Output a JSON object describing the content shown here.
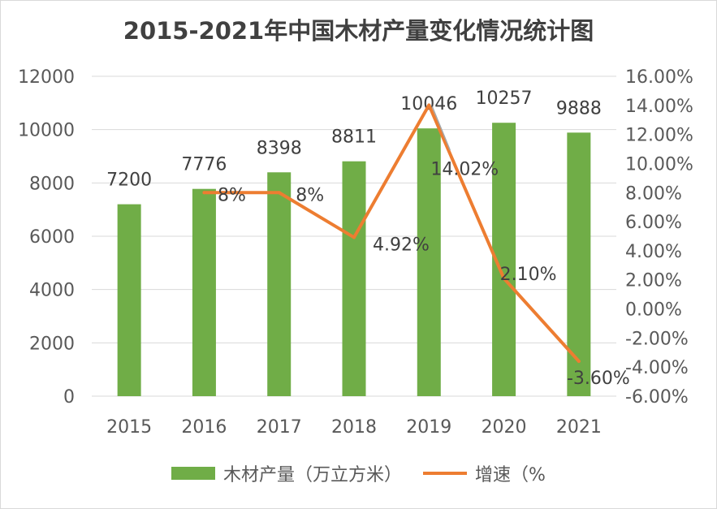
{
  "chart_data": {
    "type": "bar+line",
    "title": "2015-2021年中国木材产量变化情况统计图",
    "categories": [
      "2015",
      "2016",
      "2017",
      "2018",
      "2019",
      "2020",
      "2021"
    ],
    "series": [
      {
        "name": "木材产量（万立方米）",
        "type": "bar",
        "axis": "left",
        "color": "#70ad47",
        "values": [
          7200,
          7776,
          8398,
          8811,
          10046,
          10257,
          9888
        ],
        "labels": [
          "7200",
          "7776",
          "8398",
          "8811",
          "10046",
          "10257",
          "9888"
        ]
      },
      {
        "name": "增速（%",
        "type": "line",
        "axis": "right",
        "color": "#ed7d31",
        "values": [
          null,
          8.0,
          8.0,
          4.92,
          14.02,
          2.1,
          -3.6
        ],
        "labels": [
          "",
          "8%",
          "8%",
          "4.92%",
          "14.02%",
          "2.10%",
          "-3.60%"
        ]
      }
    ],
    "y_left": {
      "min": 0,
      "max": 12000,
      "ticks": [
        "0",
        "2000",
        "4000",
        "6000",
        "8000",
        "10000",
        "12000"
      ]
    },
    "y_right": {
      "min": -6,
      "max": 16,
      "ticks": [
        "-6.00%",
        "-4.00%",
        "-2.00%",
        "0.00%",
        "2.00%",
        "4.00%",
        "6.00%",
        "8.00%",
        "10.00%",
        "12.00%",
        "14.00%",
        "16.00%"
      ]
    },
    "grid": true,
    "legend_position": "bottom"
  }
}
